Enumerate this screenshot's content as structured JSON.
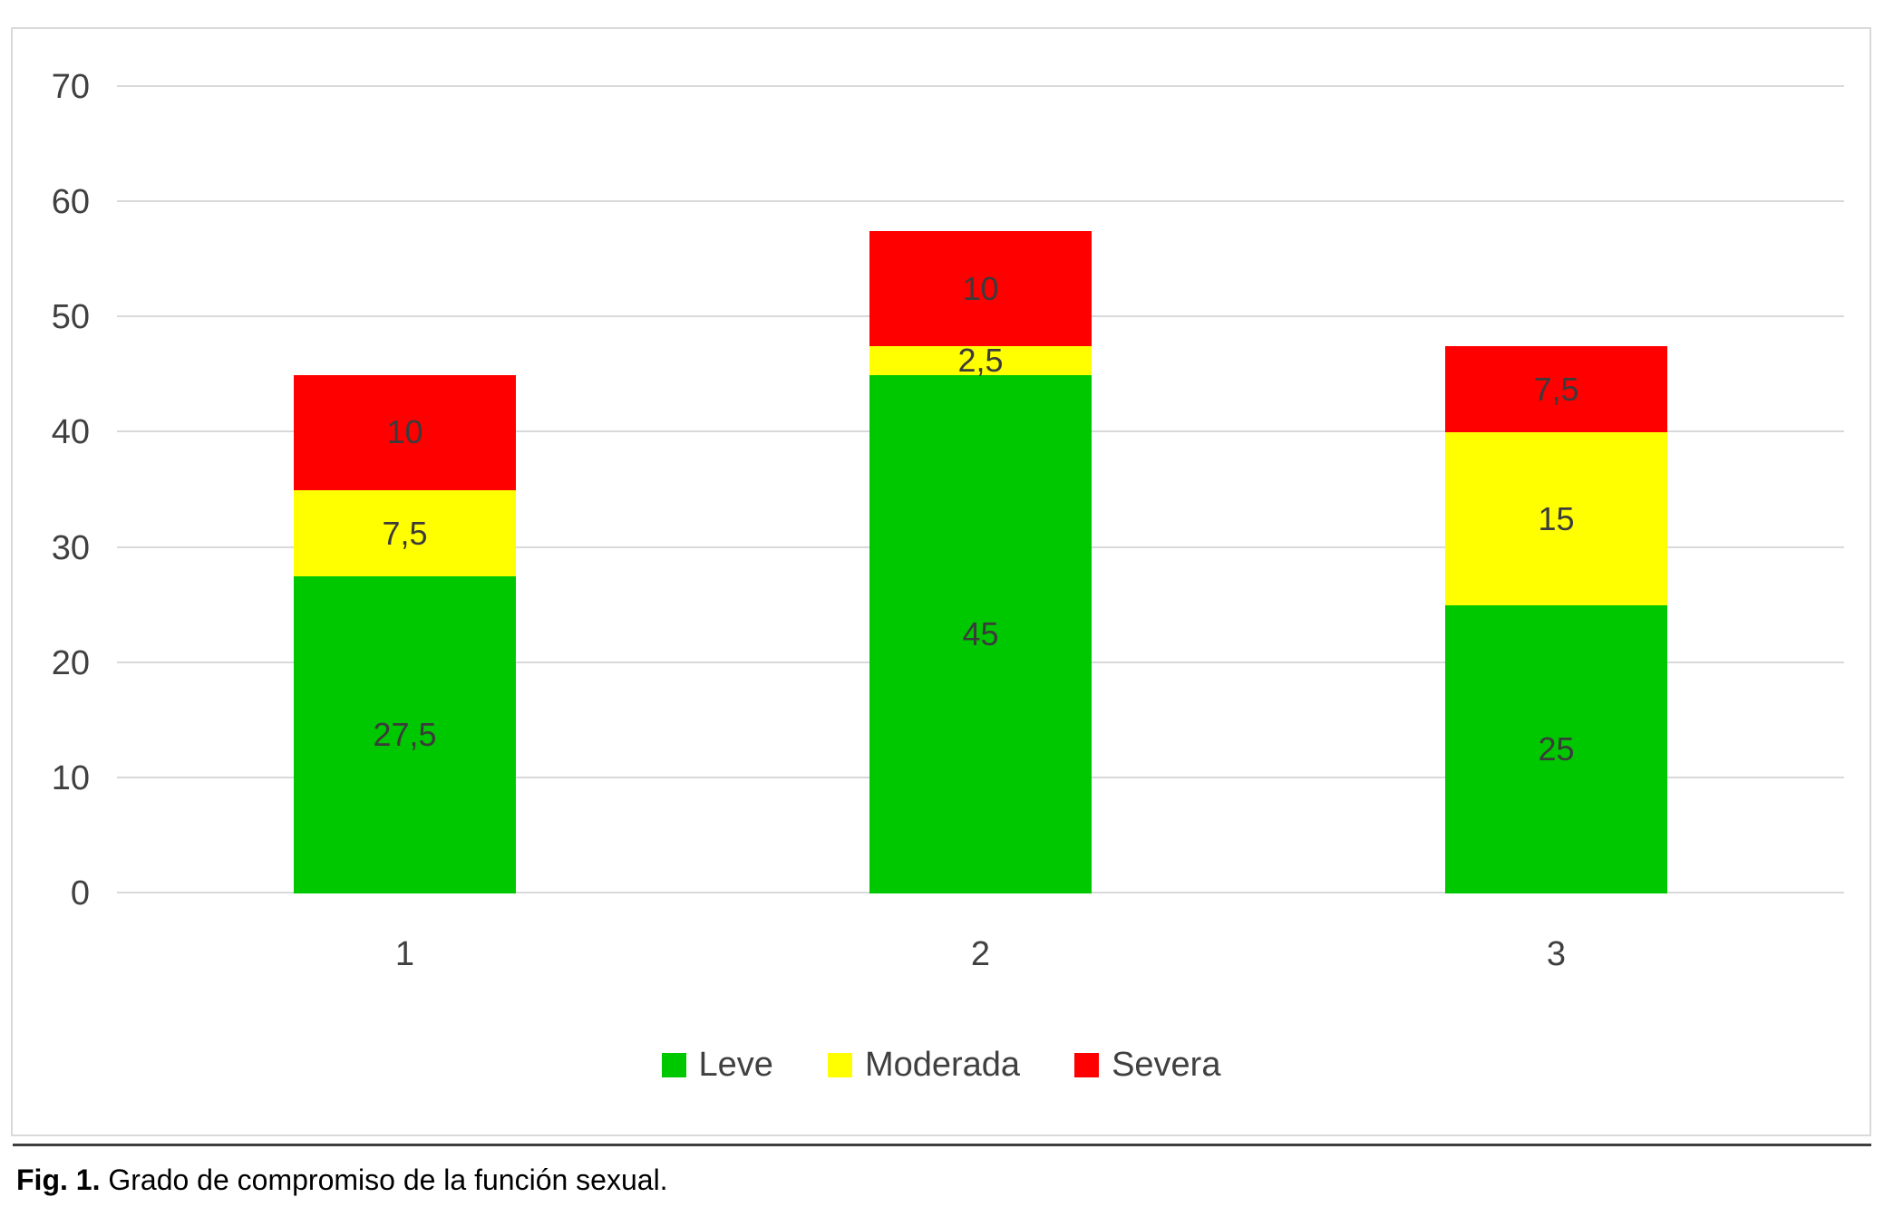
{
  "chart_data": {
    "type": "bar",
    "stacked": true,
    "title": "",
    "xlabel": "",
    "ylabel": "",
    "categories": [
      "1",
      "2",
      "3"
    ],
    "series": [
      {
        "name": "Leve",
        "color": "#00c800",
        "values": [
          27.5,
          45,
          25
        ],
        "labels": [
          "27,5",
          "45",
          "25"
        ]
      },
      {
        "name": "Moderada",
        "color": "#ffff00",
        "values": [
          7.5,
          2.5,
          15
        ],
        "labels": [
          "7,5",
          "2,5",
          "15"
        ]
      },
      {
        "name": "Severa",
        "color": "#ff0000",
        "values": [
          10,
          10,
          7.5
        ],
        "labels": [
          "10",
          "10",
          "7,5"
        ]
      }
    ],
    "ylim": [
      0,
      70
    ],
    "yticks": [
      0,
      10,
      20,
      30,
      40,
      50,
      60,
      70
    ],
    "grid": true,
    "legend_position": "bottom"
  },
  "colors": {
    "gridline": "#d9d9d9",
    "axis_text": "#404040",
    "label_text": "#3b3b3b"
  },
  "caption": {
    "prefix": "Fig. 1.",
    "text": "Grado de compromiso de la función sexual."
  }
}
